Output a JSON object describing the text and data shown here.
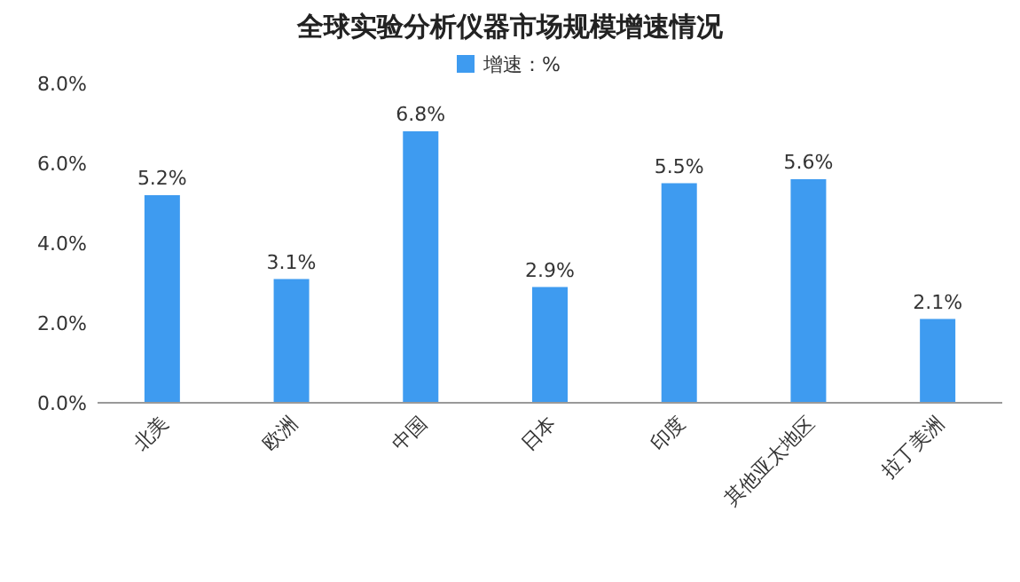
{
  "chart_data": {
    "type": "bar",
    "title": "全球实验分析仪器市场规模增速情况",
    "categories": [
      "北美",
      "欧洲",
      "中国",
      "日本",
      "印度",
      "其他亚太地区",
      "拉丁美洲"
    ],
    "series": [
      {
        "name": "增速：%",
        "color": "#3e9bf0",
        "values": [
          5.2,
          3.1,
          6.8,
          2.9,
          5.5,
          5.6,
          2.1
        ],
        "value_labels": [
          "5.2%",
          "3.1%",
          "6.8%",
          "2.9%",
          "5.5%",
          "5.6%",
          "2.1%"
        ]
      }
    ],
    "ylim": [
      0,
      8
    ],
    "yticks": [
      {
        "value": 0,
        "label": "0.0%"
      },
      {
        "value": 2,
        "label": "2.0%"
      },
      {
        "value": 4,
        "label": "4.0%"
      },
      {
        "value": 6,
        "label": "6.0%"
      },
      {
        "value": 8,
        "label": "8.0%"
      }
    ],
    "legend": "top"
  }
}
